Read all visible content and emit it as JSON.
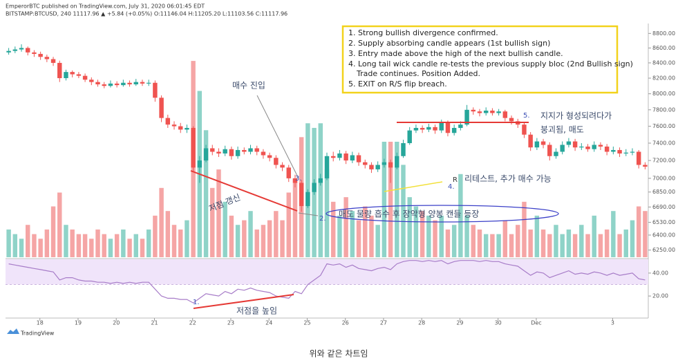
{
  "chart_data": {
    "type": "candlestick",
    "header": [
      "EmperorBTC published on TradingView.com, July 31, 2020 06:01:45 EDT",
      "BITSTAMP:BTCUSD, 240  11117.96 ▲ +5.84 (+0.05%) O:11146.04 H:11205.20 L:11103.56 C:11117.96"
    ],
    "box_lines": [
      "1. Strong bullish divergence confirmed.",
      "2. Supply absorbing candle appears (1st bullish sign)",
      "3. Entry made above the high of the next bullish candle.",
      "4. Long tail wick candle re-tests the previous supply bloc (2nd Bullish sign)",
      "Trade continues. Position Added.",
      "5. EXIT on R/S flip breach."
    ],
    "annotations": {
      "entry": "매수 진입",
      "new_low": "저점 갱신",
      "n3": "3.",
      "n2": "2.",
      "absorb": "매도 물량 흡수 후 장악형 양봉 캔들 등장",
      "r": "R",
      "n4": "4.",
      "retest": "리테스트, 추가 매수 가능",
      "n5": "5.",
      "support1": "지지가 형성되려다가",
      "support2": "붕괴됨, 매도",
      "n1": "1.",
      "higher_low": "저점을 높임"
    },
    "logo": "TradingView",
    "caption": "위와 같은 차트임",
    "up_color": "#26a69a",
    "down_color": "#ef5350",
    "volume_up_color": "#8fd3c8",
    "volume_down_color": "#f5a5a5",
    "rsi_color": "#a77cc8",
    "rsi_band_color": "#f0e4fa",
    "log_scale": true,
    "xlim": [
      0,
      101
    ],
    "xticks": [
      {
        "value": 5.4,
        "label": "18"
      },
      {
        "value": 11.4,
        "label": "19"
      },
      {
        "value": 17.4,
        "label": "20"
      },
      {
        "value": 23.4,
        "label": "21"
      },
      {
        "value": 29.4,
        "label": "22"
      },
      {
        "value": 35.4,
        "label": "23"
      },
      {
        "value": 41.4,
        "label": "24"
      },
      {
        "value": 47.4,
        "label": "25"
      },
      {
        "value": 53.4,
        "label": "26"
      },
      {
        "value": 59.4,
        "label": "27"
      },
      {
        "value": 65.4,
        "label": "28"
      },
      {
        "value": 71.4,
        "label": "29"
      },
      {
        "value": 77.4,
        "label": "30"
      },
      {
        "value": 83.4,
        "label": "Dec"
      },
      {
        "value": 95.4,
        "label": "3"
      }
    ],
    "ylim": [
      6180,
      8900
    ],
    "yticks": [
      {
        "value": 8800,
        "label": "8800.00"
      },
      {
        "value": 8600,
        "label": "8600.00"
      },
      {
        "value": 8400,
        "label": "8400.00"
      },
      {
        "value": 8200,
        "label": "8200.00"
      },
      {
        "value": 8000,
        "label": "8000.00"
      },
      {
        "value": 7800,
        "label": "7800.00"
      },
      {
        "value": 7600,
        "label": "7600.00"
      },
      {
        "value": 7400,
        "label": "7400.00"
      },
      {
        "value": 7200,
        "label": "7200.00"
      },
      {
        "value": 7000,
        "label": "7000.00"
      },
      {
        "value": 6850,
        "label": "6850.00"
      },
      {
        "value": 6690,
        "label": "6690.00"
      },
      {
        "value": 6530,
        "label": "6530.00"
      },
      {
        "value": 6400,
        "label": "6400.00"
      },
      {
        "value": 6250,
        "label": "6250.00"
      }
    ],
    "rsi_ylim": [
      2,
      52
    ],
    "rsi_ticks": [
      {
        "value": 40,
        "label": "40.00"
      },
      {
        "value": 20,
        "label": "20.00"
      }
    ],
    "rsi_band": [
      30,
      70
    ],
    "volume_lim": [
      0,
      100
    ],
    "candles": [
      [
        8540,
        8600,
        8510,
        8560
      ],
      [
        8560,
        8620,
        8530,
        8580
      ],
      [
        8580,
        8650,
        8550,
        8600
      ],
      [
        8600,
        8620,
        8500,
        8540
      ],
      [
        8540,
        8570,
        8480,
        8520
      ],
      [
        8520,
        8550,
        8440,
        8480
      ],
      [
        8480,
        8510,
        8410,
        8450
      ],
      [
        8450,
        8480,
        8360,
        8400
      ],
      [
        8400,
        8430,
        8150,
        8200
      ],
      [
        8200,
        8310,
        8170,
        8280
      ],
      [
        8280,
        8300,
        8210,
        8250
      ],
      [
        8250,
        8280,
        8200,
        8230
      ],
      [
        8230,
        8260,
        8150,
        8180
      ],
      [
        8180,
        8210,
        8110,
        8150
      ],
      [
        8150,
        8180,
        8090,
        8120
      ],
      [
        8120,
        8150,
        8070,
        8100
      ],
      [
        8100,
        8170,
        8080,
        8130
      ],
      [
        8130,
        8160,
        8080,
        8110
      ],
      [
        8110,
        8180,
        8090,
        8140
      ],
      [
        8140,
        8170,
        8090,
        8120
      ],
      [
        8120,
        8190,
        8100,
        8150
      ],
      [
        8150,
        8180,
        8100,
        8130
      ],
      [
        8130,
        8180,
        8100,
        8140
      ],
      [
        8140,
        8170,
        7900,
        7950
      ],
      [
        7950,
        7980,
        7650,
        7700
      ],
      [
        7700,
        7740,
        7580,
        7620
      ],
      [
        7620,
        7660,
        7560,
        7600
      ],
      [
        7600,
        7640,
        7520,
        7560
      ],
      [
        7560,
        7620,
        7520,
        7580
      ],
      [
        7580,
        7600,
        7080,
        7120
      ],
      [
        7120,
        7250,
        6950,
        7200
      ],
      [
        7200,
        7380,
        7180,
        7340
      ],
      [
        7340,
        7380,
        7260,
        7300
      ],
      [
        7300,
        7340,
        7240,
        7280
      ],
      [
        7280,
        7370,
        7250,
        7330
      ],
      [
        7330,
        7360,
        7210,
        7250
      ],
      [
        7250,
        7360,
        7220,
        7320
      ],
      [
        7320,
        7350,
        7270,
        7300
      ],
      [
        7300,
        7380,
        7270,
        7340
      ],
      [
        7340,
        7370,
        7260,
        7300
      ],
      [
        7300,
        7330,
        7220,
        7260
      ],
      [
        7260,
        7290,
        7190,
        7230
      ],
      [
        7230,
        7260,
        7110,
        7150
      ],
      [
        7150,
        7180,
        7080,
        7120
      ],
      [
        7120,
        7150,
        6960,
        7000
      ],
      [
        7000,
        7040,
        6900,
        6950
      ],
      [
        6950,
        6980,
        6640,
        6700
      ],
      [
        6700,
        6880,
        6680,
        6850
      ],
      [
        6850,
        6990,
        6820,
        6950
      ],
      [
        6950,
        7050,
        6920,
        7000
      ],
      [
        7000,
        7290,
        6980,
        7250
      ],
      [
        7250,
        7300,
        7190,
        7230
      ],
      [
        7230,
        7320,
        7200,
        7280
      ],
      [
        7280,
        7310,
        7160,
        7200
      ],
      [
        7200,
        7300,
        7170,
        7260
      ],
      [
        7260,
        7290,
        7140,
        7180
      ],
      [
        7180,
        7210,
        7110,
        7150
      ],
      [
        7150,
        7180,
        7060,
        7100
      ],
      [
        7100,
        7190,
        7070,
        7150
      ],
      [
        7150,
        7220,
        7120,
        7180
      ],
      [
        7180,
        7210,
        6950,
        7120
      ],
      [
        7120,
        7290,
        7100,
        7250
      ],
      [
        7250,
        7440,
        7230,
        7400
      ],
      [
        7400,
        7590,
        7380,
        7550
      ],
      [
        7550,
        7620,
        7520,
        7580
      ],
      [
        7580,
        7610,
        7520,
        7560
      ],
      [
        7560,
        7630,
        7530,
        7590
      ],
      [
        7590,
        7620,
        7510,
        7550
      ],
      [
        7550,
        7680,
        7520,
        7640
      ],
      [
        7640,
        7670,
        7480,
        7520
      ],
      [
        7520,
        7620,
        7490,
        7580
      ],
      [
        7580,
        7660,
        7550,
        7620
      ],
      [
        7620,
        7860,
        7600,
        7800
      ],
      [
        7800,
        7830,
        7740,
        7780
      ],
      [
        7780,
        7810,
        7720,
        7760
      ],
      [
        7760,
        7830,
        7730,
        7790
      ],
      [
        7790,
        7820,
        7730,
        7760
      ],
      [
        7760,
        7810,
        7730,
        7780
      ],
      [
        7780,
        7800,
        7660,
        7700
      ],
      [
        7700,
        7730,
        7620,
        7660
      ],
      [
        7660,
        7690,
        7580,
        7620
      ],
      [
        7620,
        7650,
        7460,
        7500
      ],
      [
        7500,
        7530,
        7310,
        7350
      ],
      [
        7350,
        7460,
        7320,
        7420
      ],
      [
        7420,
        7450,
        7340,
        7380
      ],
      [
        7380,
        7410,
        7200,
        7250
      ],
      [
        7250,
        7340,
        7220,
        7300
      ],
      [
        7300,
        7420,
        7270,
        7380
      ],
      [
        7380,
        7460,
        7350,
        7420
      ],
      [
        7420,
        7450,
        7310,
        7350
      ],
      [
        7350,
        7400,
        7320,
        7360
      ],
      [
        7360,
        7390,
        7300,
        7330
      ],
      [
        7330,
        7420,
        7300,
        7380
      ],
      [
        7380,
        7410,
        7320,
        7360
      ],
      [
        7360,
        7390,
        7260,
        7300
      ],
      [
        7300,
        7360,
        7270,
        7320
      ],
      [
        7320,
        7350,
        7240,
        7280
      ],
      [
        7280,
        7330,
        7250,
        7290
      ],
      [
        7290,
        7340,
        7260,
        7300
      ],
      [
        7300,
        7320,
        7110,
        7150
      ],
      [
        7150,
        7180,
        7100,
        7130
      ]
    ],
    "volume": [
      12,
      10,
      8,
      14,
      10,
      8,
      12,
      22,
      28,
      14,
      12,
      10,
      10,
      8,
      12,
      10,
      8,
      10,
      12,
      8,
      10,
      8,
      12,
      18,
      30,
      20,
      14,
      12,
      16,
      85,
      72,
      55,
      30,
      38,
      24,
      18,
      14,
      16,
      20,
      12,
      14,
      16,
      20,
      16,
      28,
      34,
      52,
      58,
      56,
      58,
      38,
      24,
      18,
      26,
      20,
      16,
      22,
      18,
      14,
      50,
      50,
      50,
      40,
      26,
      22,
      20,
      18,
      16,
      18,
      12,
      14,
      36,
      18,
      14,
      12,
      10,
      10,
      10,
      16,
      10,
      14,
      24,
      12,
      18,
      12,
      10,
      14,
      10,
      12,
      10,
      14,
      10,
      18,
      10,
      12,
      20,
      10,
      12,
      16,
      22,
      20
    ],
    "rsi": [
      48,
      47,
      46,
      45,
      44,
      43,
      42,
      41,
      34,
      36,
      36,
      34,
      33,
      33,
      32,
      32,
      31,
      32,
      31,
      32,
      31,
      32,
      32,
      26,
      20,
      18,
      18,
      17,
      17,
      14,
      18,
      22,
      21,
      20,
      24,
      22,
      26,
      25,
      27,
      25,
      24,
      23,
      20,
      19,
      18,
      24,
      22,
      30,
      34,
      38,
      48,
      47,
      48,
      45,
      47,
      44,
      43,
      42,
      44,
      45,
      43,
      48,
      50,
      51,
      51,
      50,
      51,
      50,
      51,
      48,
      50,
      51,
      51,
      51,
      50,
      51,
      50,
      50,
      48,
      47,
      46,
      42,
      38,
      41,
      40,
      36,
      38,
      40,
      42,
      39,
      40,
      39,
      41,
      40,
      38,
      40,
      38,
      39,
      40,
      35,
      34
    ]
  }
}
